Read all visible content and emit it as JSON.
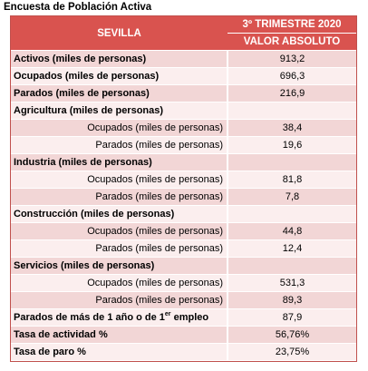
{
  "caption": "Encuesta de Población Activa",
  "header": {
    "region": "SEVILLA",
    "period": "3º TRIMESTRE 2020",
    "measure": "VALOR ABSOLUTO"
  },
  "rows": [
    {
      "label": "Activos (miles de personas)",
      "value": "913,2"
    },
    {
      "label": "Ocupados (miles de personas)",
      "value": "696,3"
    },
    {
      "label": "Parados (miles de personas)",
      "value": "216,9"
    },
    {
      "label": "Agricultura (miles de personas)",
      "value": ""
    },
    {
      "label": "Ocupados (miles de personas)",
      "value": "38,4"
    },
    {
      "label": "Parados (miles de personas)",
      "value": "19,6"
    },
    {
      "label": "Industria (miles de personas)",
      "value": ""
    },
    {
      "label": "Ocupados (miles de personas)",
      "value": "81,8"
    },
    {
      "label": "Parados (miles de personas)",
      "value": "7,8"
    },
    {
      "label": "Construcción (miles de personas)",
      "value": ""
    },
    {
      "label": "Ocupados (miles de personas)",
      "value": "44,8"
    },
    {
      "label": "Parados (miles de personas)",
      "value": "12,4"
    },
    {
      "label": "Servicios (miles de personas)",
      "value": ""
    },
    {
      "label": "Ocupados (miles de personas)",
      "value": "531,3"
    },
    {
      "label": "Parados (miles de personas)",
      "value": "89,3"
    },
    {
      "label_pre": "Parados de más de 1 año o de 1",
      "label_sup": "er",
      "label_post": " empleo",
      "value": "87,9"
    },
    {
      "label": "Tasa de actividad %",
      "value": "56,76%"
    },
    {
      "label": "Tasa de paro %",
      "value": "23,75%"
    }
  ],
  "colors": {
    "header_bg": "#d9534f",
    "row_dark": "#f2d6d6",
    "row_light": "#fbeeee"
  }
}
